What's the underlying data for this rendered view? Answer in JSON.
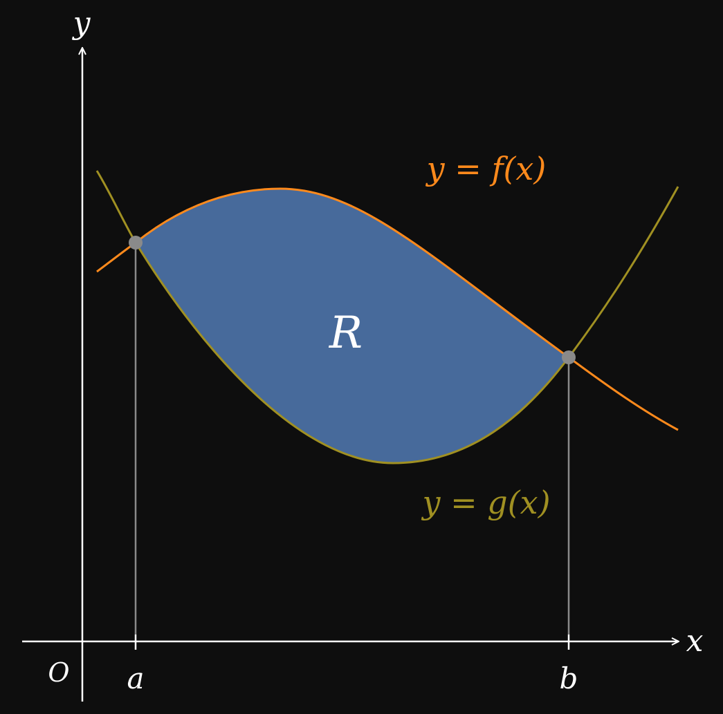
{
  "labels": {
    "y_axis": "y",
    "x_axis": "x",
    "origin": "O",
    "a": "a",
    "b": "b",
    "region": "R",
    "f_curve": "y = f(x)",
    "g_curve": "y = g(x)"
  },
  "colors": {
    "background": "#0e0e0e",
    "f_curve": "#ff8a1c",
    "g_curve": "#a09022",
    "region_fill": "#476a9b",
    "intersection_points": "#8a8a8a",
    "axes": "#ffffff"
  }
}
